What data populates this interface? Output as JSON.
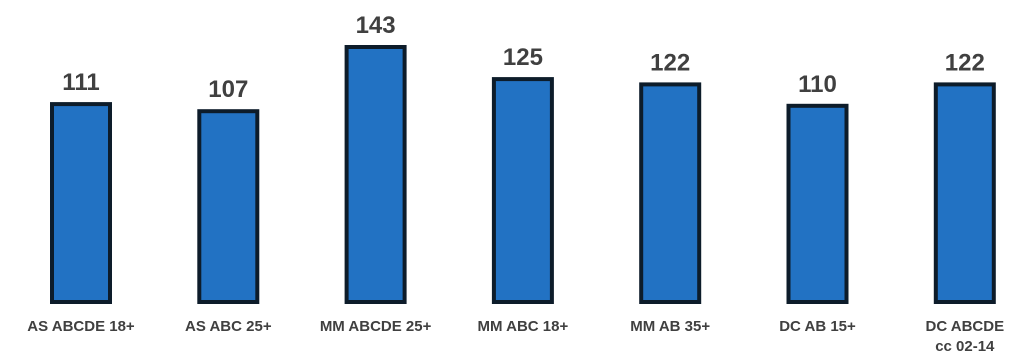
{
  "chart_data": {
    "type": "bar",
    "categories": [
      [
        "AS ABCDE 18+"
      ],
      [
        "AS ABC 25+"
      ],
      [
        "MM ABCDE 25+"
      ],
      [
        "MM ABC 18+"
      ],
      [
        "MM AB 35+"
      ],
      [
        "DC AB 15+"
      ],
      [
        "DC ABCDE",
        "cc 02-14"
      ]
    ],
    "values": [
      111,
      107,
      143,
      125,
      122,
      110,
      122
    ],
    "value_labels": [
      "111",
      "107",
      "143",
      "125",
      "122",
      "110",
      "122"
    ],
    "title": "",
    "xlabel": "",
    "ylabel": "",
    "ylim": [
      0,
      143
    ],
    "grid": false,
    "legend": "none",
    "colors": {
      "bar_fill": "#2272c3",
      "bar_stroke": "#0d1c2a",
      "text": "#404040"
    }
  }
}
